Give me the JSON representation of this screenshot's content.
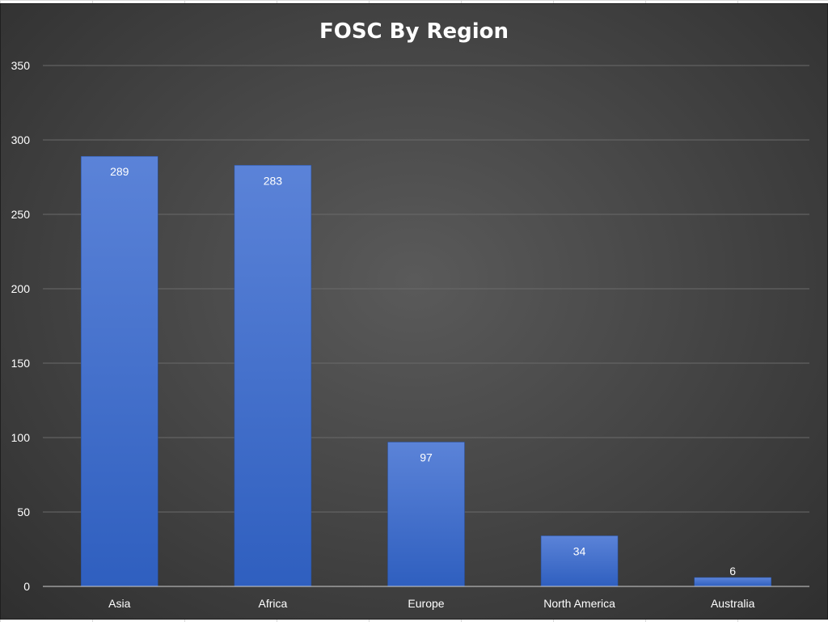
{
  "colors": {
    "bar_top": "#5b83d8",
    "bar_bottom": "#2f5fbf",
    "gridline": "#6a6a6a",
    "axis": "#cfcfcf",
    "text": "#ffffff"
  },
  "chart_data": {
    "type": "bar",
    "title": "FOSC By Region",
    "categories": [
      "Asia",
      "Africa",
      "Europe",
      "North America",
      "Australia"
    ],
    "values": [
      289,
      283,
      97,
      34,
      6
    ],
    "data_labels": [
      "289",
      "283",
      "97",
      "34",
      "6"
    ],
    "ylim": [
      0,
      350
    ],
    "yticks": [
      0,
      50,
      100,
      150,
      200,
      250,
      300,
      350
    ],
    "ytick_labels": [
      "0",
      "50",
      "100",
      "150",
      "200",
      "250",
      "300",
      "350"
    ],
    "grid": true,
    "legend": "none"
  }
}
